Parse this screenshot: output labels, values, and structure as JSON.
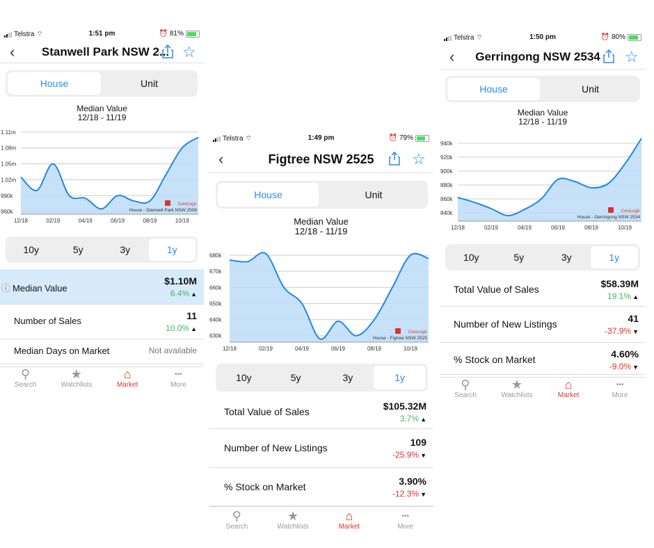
{
  "phones": [
    {
      "status": {
        "carrier": "Telstra",
        "time": "1:51 pm",
        "battery": "81%"
      },
      "nav": {
        "title": "Stanwell Park NSW 2..."
      },
      "segment": {
        "house": "House",
        "unit": "Unit",
        "selected": "House"
      },
      "chart_header": {
        "title": "Median Value",
        "range": "12/18 - 11/19"
      },
      "chart_data": {
        "type": "area",
        "x": [
          "12/18",
          "01/19",
          "02/19",
          "03/19",
          "04/19",
          "05/19",
          "06/19",
          "07/19",
          "08/19",
          "09/19",
          "10/19",
          "11/19"
        ],
        "values": [
          1.025,
          1.0,
          1.05,
          0.99,
          0.985,
          0.965,
          0.99,
          0.98,
          0.98,
          1.03,
          1.08,
          1.1
        ],
        "y_tick_labels": [
          "1.11m",
          "1.08m",
          "1.05m",
          "1.02m",
          "990k",
          "960k"
        ],
        "y_ticks": [
          1.11,
          1.08,
          1.05,
          1.02,
          0.99,
          0.96
        ],
        "x_tick_labels": [
          "12/18",
          "02/19",
          "04/19",
          "06/19",
          "08/19",
          "10/19"
        ],
        "ylim": [
          0.955,
          1.115
        ],
        "watermark": "CoreLogic",
        "caption": "House - Stanwell Park NSW 2508",
        "grid": true
      },
      "range_tabs": [
        "10y",
        "5y",
        "3y",
        "1y"
      ],
      "range_selected": "1y",
      "metrics": [
        {
          "label": "Median Value",
          "value": "$1.10M",
          "change": "6.4%",
          "dir": "up",
          "info": "ⓘ"
        },
        {
          "label": "Number of Sales",
          "value": "11",
          "change": "10.0%",
          "dir": "up"
        },
        {
          "label": "Median Days on Market",
          "value": "Not available"
        }
      ],
      "tabbar": [
        "Search",
        "Watchlists",
        "Market",
        "More"
      ],
      "active_tab": "Market"
    },
    {
      "status": {
        "carrier": "Telstra",
        "time": "1:49 pm",
        "battery": "79%"
      },
      "nav": {
        "title": "Figtree NSW 2525"
      },
      "segment": {
        "house": "House",
        "unit": "Unit",
        "selected": "House"
      },
      "chart_header": {
        "title": "Median Value",
        "range": "12/18 - 11/19"
      },
      "chart_data": {
        "type": "area",
        "x": [
          "12/18",
          "01/19",
          "02/19",
          "03/19",
          "04/19",
          "05/19",
          "06/19",
          "07/19",
          "08/19",
          "09/19",
          "10/19",
          "11/19"
        ],
        "values": [
          677,
          676,
          681,
          660,
          650,
          628,
          639,
          630,
          640,
          660,
          680,
          678
        ],
        "y_tick_labels": [
          "680k",
          "670k",
          "660k",
          "650k",
          "640k",
          "630k"
        ],
        "y_ticks": [
          680,
          670,
          660,
          650,
          640,
          630
        ],
        "x_tick_labels": [
          "12/18",
          "02/19",
          "04/19",
          "06/19",
          "08/19",
          "10/19"
        ],
        "ylim": [
          626,
          683
        ],
        "watermark": "CoreLogic",
        "caption": "House - Figtree NSW 2525",
        "grid": true
      },
      "range_tabs": [
        "10y",
        "5y",
        "3y",
        "1y"
      ],
      "range_selected": "1y",
      "metrics": [
        {
          "label": "Total Value of Sales",
          "value": "$105.32M",
          "change": "3.7%",
          "dir": "up"
        },
        {
          "label": "Number of New Listings",
          "value": "109",
          "change": "-25.9%",
          "dir": "down"
        },
        {
          "label": "% Stock on Market",
          "value": "3.90%",
          "change": "-12.3%",
          "dir": "down"
        }
      ],
      "tabbar": [
        "Search",
        "Watchlists",
        "Market",
        "More"
      ],
      "active_tab": "Market"
    },
    {
      "status": {
        "carrier": "Telstra",
        "time": "1:50 pm",
        "battery": "80%"
      },
      "nav": {
        "title": "Gerringong NSW 2534"
      },
      "segment": {
        "house": "House",
        "unit": "Unit",
        "selected": "House"
      },
      "chart_header": {
        "title": "Median Value",
        "range": "12/18 - 11/19"
      },
      "chart_data": {
        "type": "area",
        "x": [
          "12/18",
          "01/19",
          "02/19",
          "03/19",
          "04/19",
          "05/19",
          "06/19",
          "07/19",
          "08/19",
          "09/19",
          "10/19",
          "11/19"
        ],
        "values": [
          862,
          855,
          846,
          836,
          845,
          860,
          888,
          885,
          876,
          882,
          910,
          947
        ],
        "y_tick_labels": [
          "940k",
          "920k",
          "900k",
          "880k",
          "860k",
          "840k"
        ],
        "y_ticks": [
          940,
          920,
          900,
          880,
          860,
          840
        ],
        "x_tick_labels": [
          "12/18",
          "02/19",
          "04/19",
          "06/19",
          "08/19",
          "10/19"
        ],
        "ylim": [
          828,
          948
        ],
        "watermark": "CoreLogic",
        "caption": "House - Gerringong NSW 2534",
        "grid": true
      },
      "range_tabs": [
        "10y",
        "5y",
        "3y",
        "1y"
      ],
      "range_selected": "1y",
      "metrics": [
        {
          "label": "Total Value of Sales",
          "value": "$58.39M",
          "change": "19.1%",
          "dir": "up"
        },
        {
          "label": "Number of New Listings",
          "value": "41",
          "change": "-37.9%",
          "dir": "down"
        },
        {
          "label": "% Stock on Market",
          "value": "4.60%",
          "change": "-9.0%",
          "dir": "down"
        }
      ],
      "tabbar": [
        "Search",
        "Watchlists",
        "Market",
        "More"
      ],
      "active_tab": "Market"
    }
  ]
}
